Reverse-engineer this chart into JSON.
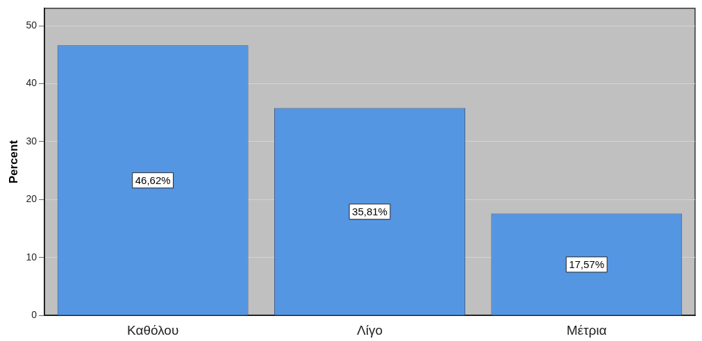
{
  "chart_data": {
    "type": "bar",
    "ylabel": "Percent",
    "categories": [
      "Καθόλου",
      "Λίγο",
      "Μέτρια"
    ],
    "values": [
      46.62,
      35.81,
      17.57
    ],
    "value_labels": [
      "46,62%",
      "35,81%",
      "17,57%"
    ],
    "color": "#5596e3",
    "ylim": [
      0,
      53
    ],
    "yticks": [
      0,
      10,
      20,
      30,
      40,
      50
    ],
    "grid": "y",
    "legend": false
  }
}
